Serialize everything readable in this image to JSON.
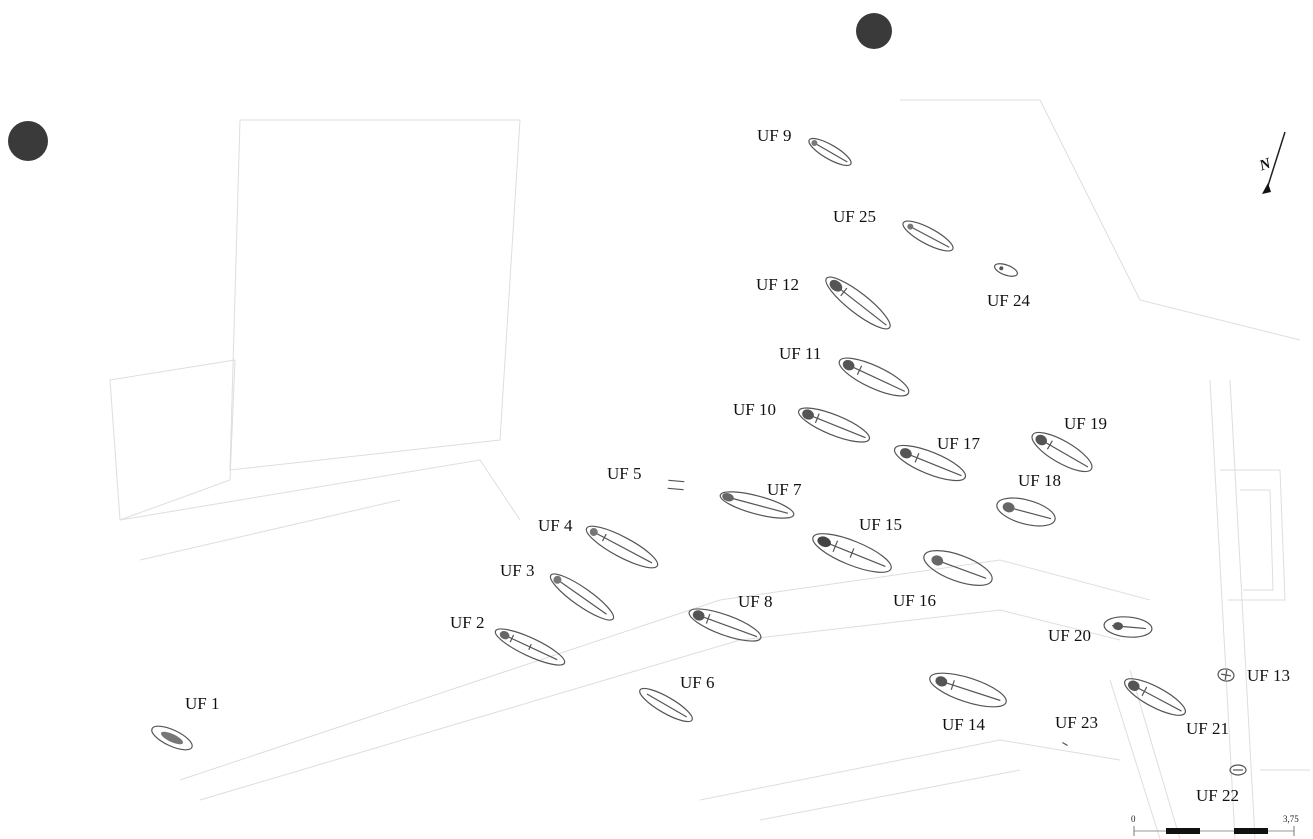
{
  "labels": {
    "uf1": "UF 1",
    "uf2": "UF 2",
    "uf3": "UF 3",
    "uf4": "UF 4",
    "uf5": "UF 5",
    "uf6": "UF 6",
    "uf7": "UF 7",
    "uf8": "UF 8",
    "uf9": "UF 9",
    "uf10": "UF 10",
    "uf11": "UF 11",
    "uf12": "UF 12",
    "uf13": "UF 13",
    "uf14": "UF 14",
    "uf15": "UF 15",
    "uf16": "UF 16",
    "uf17": "UF 17",
    "uf18": "UF 18",
    "uf19": "UF 19",
    "uf20": "UF 20",
    "uf21": "UF 21",
    "uf22": "UF 22",
    "uf23": "UF 23",
    "uf24": "UF 24",
    "uf25": "UF 25"
  },
  "north_arrow": {
    "label": "N"
  },
  "scale": {
    "start": "0",
    "end": "3,75"
  },
  "colors": {
    "line": "#d9d9d9",
    "burial": "#444444",
    "marker": "#3a3a3a"
  }
}
